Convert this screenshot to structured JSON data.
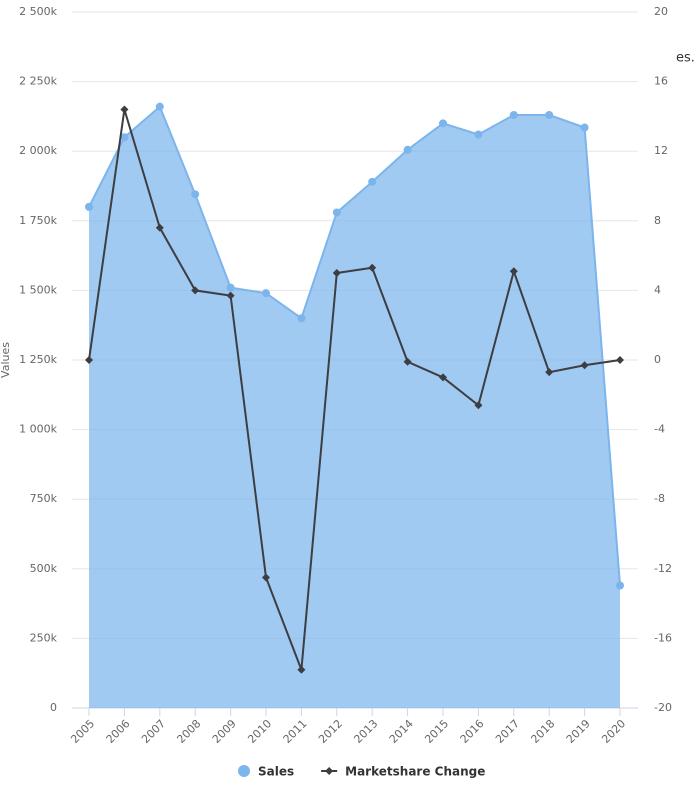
{
  "chart_data": {
    "type": "area-line",
    "y_label": "Values",
    "annotation": "es.",
    "categories": [
      "2005",
      "2006",
      "2007",
      "2008",
      "2009",
      "2010",
      "2011",
      "2012",
      "2013",
      "2014",
      "2015",
      "2016",
      "2017",
      "2018",
      "2019",
      "2020"
    ],
    "series": [
      {
        "name": "Sales",
        "color": "#7cb5ec",
        "type": "area",
        "axis": "y",
        "values": [
          1800000,
          2050000,
          2160000,
          1845000,
          1510000,
          1490000,
          1400000,
          1780000,
          1890000,
          2005000,
          2100000,
          2060000,
          2130000,
          2130000,
          2085000,
          440000
        ]
      },
      {
        "name": "Marketshare Change",
        "color": "#3d3d42",
        "type": "line",
        "axis": "y2",
        "values": [
          0,
          14.4,
          7.6,
          4.0,
          3.7,
          -12.5,
          -17.8,
          5.0,
          5.3,
          -0.1,
          -1.0,
          -2.6,
          5.1,
          -0.7,
          -0.3,
          0
        ]
      }
    ],
    "ylim": [
      0,
      2500000
    ],
    "yticks": [
      {
        "value": 0,
        "label": "0"
      },
      {
        "value": 250000,
        "label": "250k"
      },
      {
        "value": 500000,
        "label": "500k"
      },
      {
        "value": 750000,
        "label": "750k"
      },
      {
        "value": 1000000,
        "label": "1 000k"
      },
      {
        "value": 1250000,
        "label": "1 250k"
      },
      {
        "value": 1500000,
        "label": "1 500k"
      },
      {
        "value": 1750000,
        "label": "1 750k"
      },
      {
        "value": 2000000,
        "label": "2 000k"
      },
      {
        "value": 2250000,
        "label": "2 250k"
      },
      {
        "value": 2500000,
        "label": "2 500k"
      }
    ],
    "y2lim": [
      -20,
      20
    ],
    "y2ticks": [
      -20,
      -16,
      -12,
      -8,
      -4,
      0,
      4,
      8,
      12,
      16,
      20
    ],
    "grid": true
  }
}
